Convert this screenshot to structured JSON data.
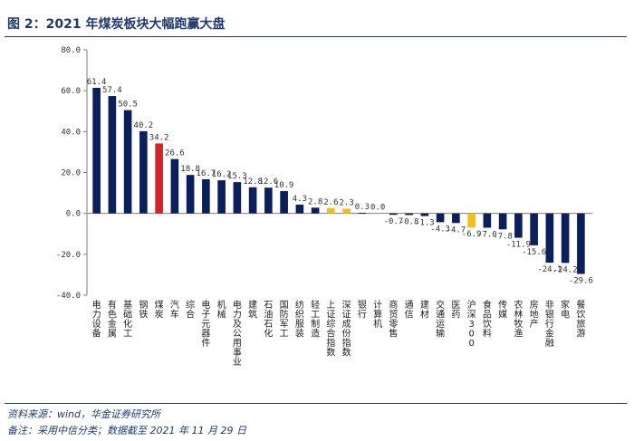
{
  "header": {
    "title": "图 2：2021 年煤炭板块大幅跑赢大盘"
  },
  "footer": {
    "source": "资料来源：wind，华金证券研究所",
    "remark": "备注：采用中信分类；数据截至 2021 年 11 月 29 日"
  },
  "colors": {
    "default_bar": "#0b1f5c",
    "highlight_bar": "#d6232a",
    "index_bar": "#f2bd1d"
  },
  "chart_data": {
    "type": "bar",
    "categories": [
      "电力设备",
      "有色金属",
      "基础化工",
      "钢铁",
      "煤炭",
      "汽车",
      "综合",
      "电子元器件",
      "机械",
      "电力及公用事业",
      "建筑",
      "石油石化",
      "国防军工",
      "纺织服装",
      "轻工制造",
      "上证综合指数",
      "深证成份指数",
      "银行",
      "计算机",
      "商贸零售",
      "通信",
      "建材",
      "交通运输",
      "医药",
      "沪深300",
      "食品饮料",
      "传媒",
      "农林牧渔",
      "房地产",
      "非银行金融",
      "家电",
      "餐饮旅游"
    ],
    "values": [
      61.4,
      57.4,
      50.5,
      40.2,
      34.2,
      26.6,
      18.8,
      16.7,
      16.2,
      15.3,
      12.8,
      12.6,
      10.9,
      4.3,
      2.8,
      2.6,
      2.3,
      0.3,
      0.0,
      -0.7,
      -0.8,
      -1.3,
      -4.3,
      -4.7,
      -6.9,
      -7.0,
      -7.8,
      -11.9,
      -15.6,
      -24.1,
      -24.2,
      -29.6
    ],
    "value_labels": [
      "61.4",
      "57.4",
      "50.5",
      "40.2",
      "34.2",
      "26.6",
      "18.8",
      "16.7",
      "16.2",
      "15.3",
      "12.8",
      "12.6",
      "10.9",
      "4.3",
      "2.8",
      "2.6",
      "2.3",
      "0.3",
      "0.0",
      "-0.7",
      "-0.8",
      "-1.3",
      "-4.3",
      "-4.7",
      "-6.9",
      "-7.0",
      "-7.8",
      "-11.9",
      "-15.6",
      "-24.1",
      "-24.2",
      "-29.6"
    ],
    "bar_colors": [
      "default",
      "default",
      "default",
      "default",
      "highlight",
      "default",
      "default",
      "default",
      "default",
      "default",
      "default",
      "default",
      "default",
      "default",
      "default",
      "index",
      "index",
      "default",
      "default",
      "default",
      "default",
      "default",
      "default",
      "default",
      "index",
      "default",
      "default",
      "default",
      "default",
      "default",
      "default",
      "default"
    ],
    "ylim": [
      -40,
      80
    ],
    "yticks": [
      80,
      60,
      40,
      20,
      0,
      -20,
      -40
    ],
    "ytick_labels": [
      "80.0",
      "60.0",
      "40.0",
      "20.0",
      "0.0",
      "-20.0",
      "-40.0"
    ],
    "xlabel": "",
    "ylabel": "",
    "grid": false,
    "legend": "none"
  }
}
